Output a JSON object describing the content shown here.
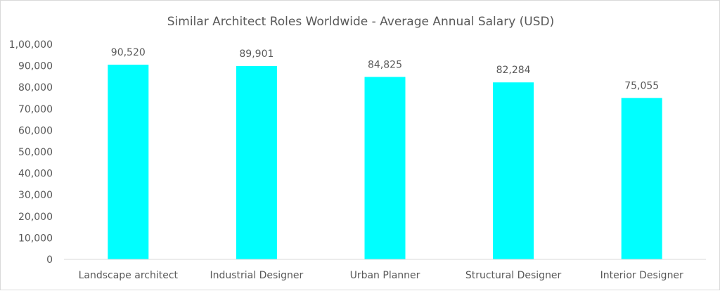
{
  "chart_data": {
    "type": "bar",
    "title": "Similar Architect Roles Worldwide - Average Annual Salary (USD)",
    "xlabel": "",
    "ylabel": "",
    "categories": [
      "Landscape architect",
      "Industrial Designer",
      "Urban Planner",
      "Structural Designer",
      "Interior Designer"
    ],
    "values": [
      90520,
      89901,
      84825,
      82284,
      75055
    ],
    "data_labels": [
      "90,520",
      "89,901",
      "84,825",
      "82,284",
      "75,055"
    ],
    "ylim": [
      0,
      100000
    ],
    "yticks": [
      0,
      10000,
      20000,
      30000,
      40000,
      50000,
      60000,
      70000,
      80000,
      90000,
      100000
    ],
    "ytick_labels": [
      "0",
      "10,000",
      "20,000",
      "30,000",
      "40,000",
      "50,000",
      "60,000",
      "70,000",
      "80,000",
      "90,000",
      "1,00,000"
    ],
    "grid": false,
    "legend": "none",
    "bar_color": "#00FFFF"
  }
}
